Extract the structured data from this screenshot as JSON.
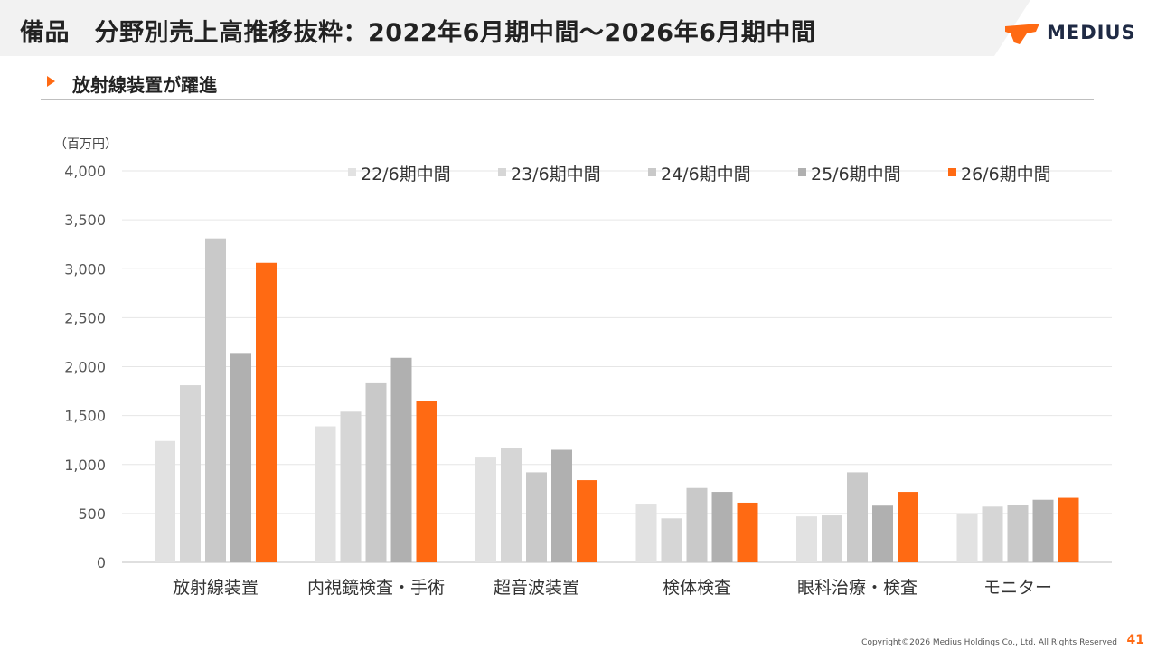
{
  "header": {
    "title": "備品　分野別売上高推移抜粋：2022年6月期中間～2026年6月期中間",
    "logo_text": "MEDIUS"
  },
  "subheading": "放射線装置が躍進",
  "unit_label": "（百万円）",
  "footer": {
    "copyright": "Copyright©2026 Medius Holdings Co., Ltd. All Rights Reserved",
    "page_number": "41"
  },
  "colors": {
    "accent": "#ff6a13",
    "series": [
      "#e2e2e2",
      "#d6d6d6",
      "#c9c9c9",
      "#b0b0b0",
      "#ff6a13"
    ]
  },
  "chart_data": {
    "type": "bar",
    "categories": [
      "放射線装置",
      "内視鏡検査・手術",
      "超音波装置",
      "検体検査",
      "眼科治療・検査",
      "モニター"
    ],
    "series": [
      {
        "name": "22/6期中間",
        "values": [
          1240,
          1390,
          1080,
          600,
          470,
          500
        ]
      },
      {
        "name": "23/6期中間",
        "values": [
          1810,
          1540,
          1170,
          450,
          480,
          570
        ]
      },
      {
        "name": "24/6期中間",
        "values": [
          3310,
          1830,
          920,
          760,
          920,
          590
        ]
      },
      {
        "name": "25/6期中間",
        "values": [
          2140,
          2090,
          1150,
          720,
          580,
          640
        ]
      },
      {
        "name": "26/6期中間",
        "values": [
          3060,
          1650,
          840,
          610,
          720,
          660
        ]
      }
    ],
    "ylim": [
      0,
      4000
    ],
    "yticks": [
      0,
      500,
      1000,
      1500,
      2000,
      2500,
      3000,
      3500,
      4000
    ],
    "ytick_labels": [
      "0",
      "500",
      "1,000",
      "1,500",
      "2,000",
      "2,500",
      "3,000",
      "3,500",
      "4,000"
    ],
    "grid": true,
    "legend_position": "top"
  }
}
